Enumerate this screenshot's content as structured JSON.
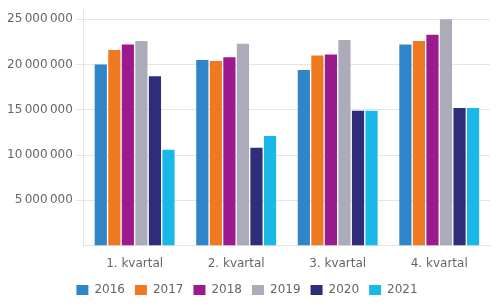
{
  "chart_data": {
    "type": "bar",
    "categories": [
      "1. kvartal",
      "2. kvartal",
      "3. kvartal",
      "4. kvartal"
    ],
    "series": [
      {
        "name": "2016",
        "color": "#2E86C8",
        "values": [
          20000000,
          20500000,
          19400000,
          22200000
        ]
      },
      {
        "name": "2017",
        "color": "#F07820",
        "values": [
          21600000,
          20400000,
          21000000,
          22600000
        ]
      },
      {
        "name": "2018",
        "color": "#9B1B8E",
        "values": [
          22200000,
          20800000,
          21100000,
          23300000
        ]
      },
      {
        "name": "2019",
        "color": "#ABABBA",
        "values": [
          22600000,
          22300000,
          22700000,
          25000000
        ]
      },
      {
        "name": "2020",
        "color": "#2D2D7A",
        "values": [
          18700000,
          10800000,
          14900000,
          15200000
        ]
      },
      {
        "name": "2021",
        "color": "#1AB8E8",
        "values": [
          10600000,
          12100000,
          14900000,
          15200000
        ]
      }
    ],
    "ylim": [
      0,
      26000000
    ],
    "yticks": [
      {
        "value": 5000000,
        "label": "5 000 000"
      },
      {
        "value": 10000000,
        "label": "10 000 000"
      },
      {
        "value": 15000000,
        "label": "15 000 000"
      },
      {
        "value": 20000000,
        "label": "20 000 000"
      },
      {
        "value": 25000000,
        "label": "25 000 000"
      }
    ],
    "grid": true,
    "legend": "bottom"
  }
}
